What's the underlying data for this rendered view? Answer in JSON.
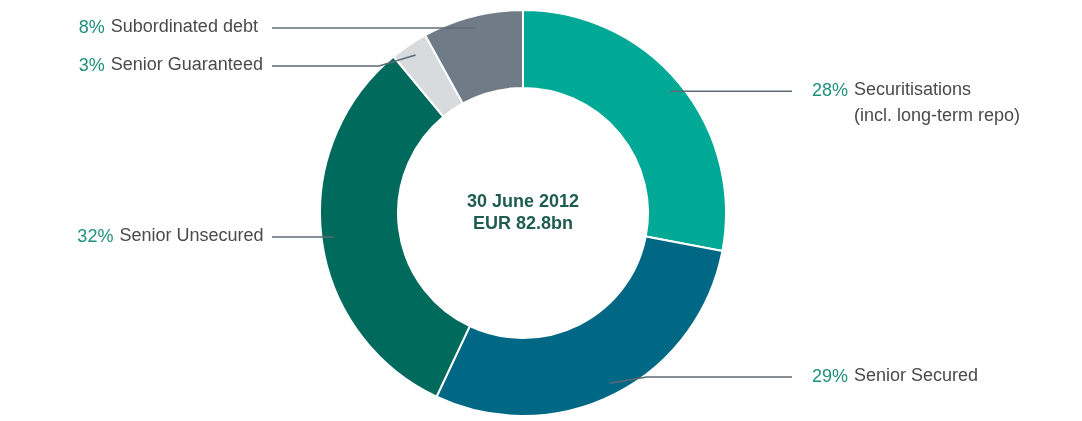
{
  "chart_data": {
    "type": "donut",
    "categories": [
      "Securitisations\n(incl. long-term repo)",
      "Senior Secured",
      "Senior Unsecured",
      "Senior Guaranteed",
      "Subordinated debt"
    ],
    "values": [
      28,
      29,
      32,
      3,
      8
    ],
    "colors": [
      "#00a896",
      "#006884",
      "#006b5c",
      "#d8dbde",
      "#6f7c87"
    ],
    "value_labels": [
      "28%",
      "29%",
      "32%",
      "3%",
      "8%"
    ],
    "annotations": [
      "30 June 2012",
      "EUR 82.8bn"
    ]
  }
}
